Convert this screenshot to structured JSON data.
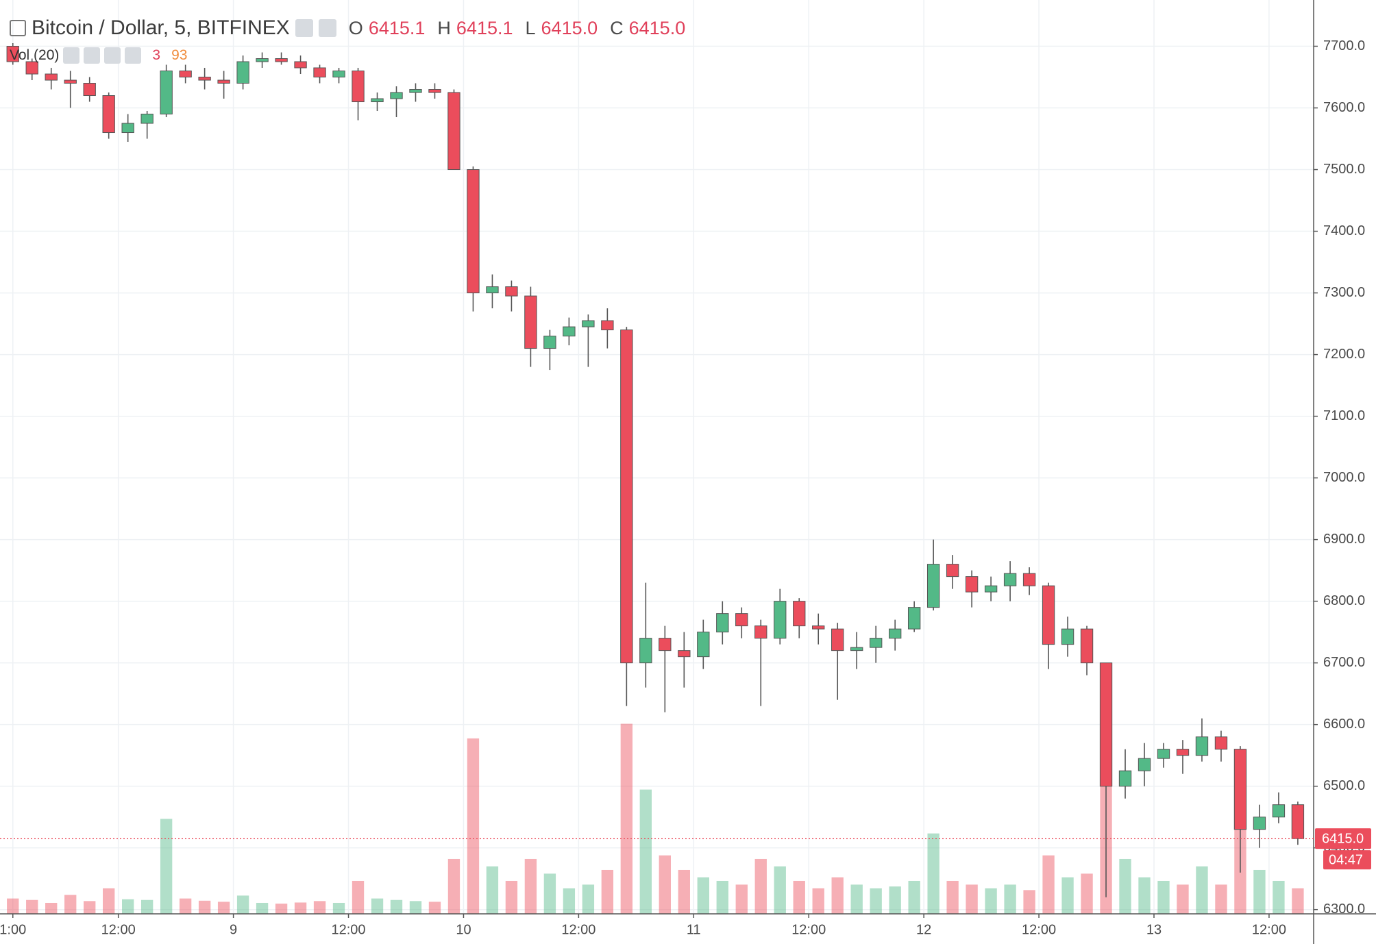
{
  "chart_data": {
    "type": "candlestick",
    "title": "Bitcoin / Dollar, 5, BITFINEX",
    "ohlc_legend": [
      {
        "key": "O",
        "text": "6415.1"
      },
      {
        "key": "H",
        "text": "6415.1"
      },
      {
        "key": "L",
        "text": "6415.0"
      },
      {
        "key": "C",
        "text": "6415.0"
      }
    ],
    "volume_name": "Vol (20)",
    "volume_legend": [
      "3",
      "93"
    ],
    "last_price": {
      "value": 6415,
      "label": "6415.0"
    },
    "countdown": "04:47",
    "up_color": "#53b987",
    "down_color": "#eb4d5c",
    "grid": true,
    "xlim": [
      -0.34,
      136.65
    ],
    "xticks": [
      {
        "value": 1,
        "label": "1:00"
      },
      {
        "value": 12,
        "label": "12:00"
      },
      {
        "value": 24,
        "label": "9"
      },
      {
        "value": 36,
        "label": "12:00"
      },
      {
        "value": 48,
        "label": "10"
      },
      {
        "value": 60,
        "label": "12:00"
      },
      {
        "value": 72,
        "label": "11"
      },
      {
        "value": 84,
        "label": "12:00"
      },
      {
        "value": 96,
        "label": "12"
      },
      {
        "value": 108,
        "label": "12:00"
      },
      {
        "value": 120,
        "label": "13"
      },
      {
        "value": 132,
        "label": "12:00"
      }
    ],
    "ylim": [
      6293,
      7775
    ],
    "yticks": [
      {
        "value": 6300,
        "label": "6300.0"
      },
      {
        "value": 6400,
        "label": "6400.0"
      },
      {
        "value": 6500,
        "label": "6500.0"
      },
      {
        "value": 6600,
        "label": "6600.0"
      },
      {
        "value": 6700,
        "label": "6700.0"
      },
      {
        "value": 6800,
        "label": "6800.0"
      },
      {
        "value": 6900,
        "label": "6900.0"
      },
      {
        "value": 7000,
        "label": "7000.0"
      },
      {
        "value": 7100,
        "label": "7100.0"
      },
      {
        "value": 7200,
        "label": "7200.0"
      },
      {
        "value": 7300,
        "label": "7300.0"
      },
      {
        "value": 7400,
        "label": "7400.0"
      },
      {
        "value": 7500,
        "label": "7500.0"
      },
      {
        "value": 7600,
        "label": "7600.0"
      },
      {
        "value": 7700,
        "label": "7700.0"
      }
    ],
    "x": [
      1,
      3,
      5,
      7,
      9,
      11,
      13,
      15,
      17,
      19,
      21,
      23,
      25,
      27,
      29,
      31,
      33,
      35,
      37,
      39,
      41,
      43,
      45,
      47,
      49,
      51,
      53,
      55,
      57,
      59,
      61,
      63,
      65,
      67,
      69,
      71,
      73,
      75,
      77,
      79,
      81,
      83,
      85,
      87,
      89,
      91,
      93,
      95,
      97,
      99,
      101,
      103,
      105,
      107,
      109,
      111,
      113,
      115,
      117,
      119,
      121,
      123,
      125,
      127,
      129,
      131,
      133,
      135
    ],
    "open": [
      7700,
      7675,
      7655,
      7645,
      7640,
      7620,
      7560,
      7575,
      7590,
      7660,
      7650,
      7645,
      7640,
      7675,
      7680,
      7675,
      7665,
      7650,
      7660,
      7610,
      7615,
      7625,
      7630,
      7625,
      7500,
      7300,
      7310,
      7295,
      7210,
      7230,
      7245,
      7255,
      7240,
      6700,
      6740,
      6720,
      6710,
      6750,
      6780,
      6760,
      6740,
      6800,
      6760,
      6755,
      6720,
      6725,
      6740,
      6755,
      6790,
      6860,
      6840,
      6815,
      6825,
      6845,
      6825,
      6730,
      6755,
      6700,
      6500,
      6525,
      6545,
      6560,
      6550,
      6580,
      6560,
      6430,
      6450,
      6470
    ],
    "high": [
      7705,
      7680,
      7665,
      7660,
      7650,
      7625,
      7590,
      7595,
      7670,
      7670,
      7665,
      7660,
      7685,
      7690,
      7690,
      7685,
      7670,
      7665,
      7665,
      7625,
      7635,
      7640,
      7640,
      7630,
      7505,
      7330,
      7320,
      7310,
      7240,
      7260,
      7265,
      7275,
      7245,
      6830,
      6760,
      6750,
      6770,
      6800,
      6790,
      6770,
      6820,
      6805,
      6780,
      6765,
      6750,
      6760,
      6770,
      6800,
      6900,
      6875,
      6850,
      6840,
      6865,
      6855,
      6830,
      6775,
      6760,
      6700,
      6560,
      6570,
      6570,
      6575,
      6610,
      6590,
      6565,
      6470,
      6490,
      6475
    ],
    "low": [
      7670,
      7645,
      7630,
      7600,
      7610,
      7550,
      7545,
      7550,
      7585,
      7640,
      7630,
      7615,
      7630,
      7665,
      7670,
      7655,
      7640,
      7640,
      7580,
      7595,
      7585,
      7610,
      7615,
      7500,
      7270,
      7275,
      7270,
      7180,
      7175,
      7215,
      7180,
      7210,
      6630,
      6660,
      6620,
      6660,
      6690,
      6730,
      6740,
      6630,
      6730,
      6740,
      6730,
      6640,
      6690,
      6700,
      6720,
      6750,
      6785,
      6820,
      6790,
      6800,
      6800,
      6810,
      6690,
      6710,
      6680,
      6320,
      6480,
      6500,
      6530,
      6520,
      6540,
      6540,
      6360,
      6400,
      6440,
      6405
    ],
    "close": [
      7675,
      7655,
      7645,
      7640,
      7620,
      7560,
      7575,
      7590,
      7660,
      7650,
      7645,
      7640,
      7675,
      7680,
      7675,
      7665,
      7650,
      7660,
      7610,
      7615,
      7625,
      7630,
      7625,
      7500,
      7300,
      7310,
      7295,
      7210,
      7230,
      7245,
      7255,
      7240,
      6700,
      6740,
      6720,
      6710,
      6750,
      6780,
      6760,
      6740,
      6800,
      6760,
      6755,
      6720,
      6725,
      6740,
      6755,
      6790,
      6860,
      6840,
      6815,
      6825,
      6845,
      6825,
      6730,
      6755,
      6700,
      6500,
      6525,
      6545,
      6560,
      6550,
      6580,
      6560,
      6430,
      6450,
      6470,
      6415
    ],
    "volume": [
      420,
      380,
      300,
      520,
      350,
      700,
      400,
      380,
      2600,
      420,
      360,
      330,
      500,
      300,
      280,
      310,
      350,
      300,
      900,
      420,
      380,
      350,
      330,
      1500,
      4800,
      1300,
      900,
      1500,
      1100,
      700,
      800,
      1200,
      5200,
      3400,
      1600,
      1200,
      1000,
      900,
      800,
      1500,
      1300,
      900,
      700,
      1000,
      800,
      700,
      750,
      900,
      2200,
      900,
      800,
      700,
      800,
      650,
      1600,
      1000,
      1100,
      4200,
      1500,
      1000,
      900,
      800,
      1300,
      800,
      2400,
      1200,
      900,
      700
    ],
    "volume_ylim": [
      0,
      25000
    ]
  }
}
